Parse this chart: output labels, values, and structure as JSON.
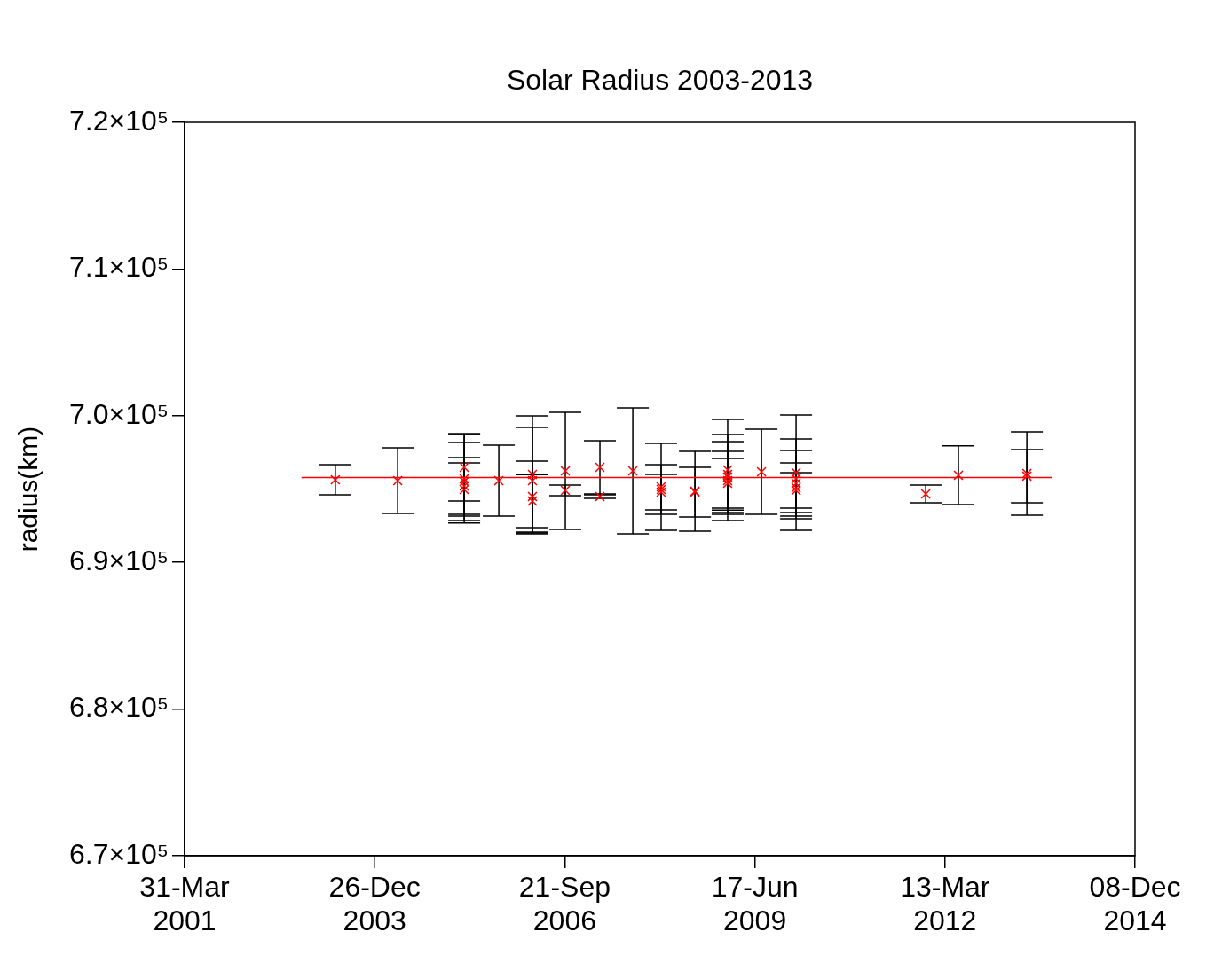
{
  "chart_data": {
    "type": "scatter",
    "title": "Solar Radius 2003-2013",
    "ylabel": "radius(km)",
    "xlim": [
      "2001-03-31",
      "2014-12-08"
    ],
    "xticks": [
      {
        "value": "2001-03-31",
        "label": "31-Mar 2001"
      },
      {
        "value": "2003-12-26",
        "label": "26-Dec 2003"
      },
      {
        "value": "2006-09-21",
        "label": "21-Sep 2006"
      },
      {
        "value": "2009-06-17",
        "label": "17-Jun 2009"
      },
      {
        "value": "2012-03-13",
        "label": "13-Mar 2012"
      },
      {
        "value": "2014-12-08",
        "label": "08-Dec 2014"
      }
    ],
    "ylim": [
      670000,
      720000
    ],
    "yticks": [
      {
        "value": 670000,
        "label": "6.7×10⁵"
      },
      {
        "value": 680000,
        "label": "6.8×10⁵"
      },
      {
        "value": 690000,
        "label": "6.9×10⁵"
      },
      {
        "value": 700000,
        "label": "7.0×10⁵"
      },
      {
        "value": 710000,
        "label": "7.1×10⁵"
      },
      {
        "value": 720000,
        "label": "7.2×10⁵"
      }
    ],
    "grid": false,
    "legend": false,
    "marker": "cross",
    "series": [
      {
        "type": "scatter",
        "color": "#ff0000",
        "x": [
          "2003-06-02",
          "2004-04-25",
          "2005-04-10",
          "2005-04-10",
          "2005-04-10",
          "2005-04-10",
          "2005-04-10",
          "2005-10-09",
          "2006-04-04",
          "2006-04-04",
          "2006-04-04",
          "2006-04-04",
          "2006-09-24",
          "2006-09-24",
          "2007-03-25",
          "2007-03-25",
          "2007-09-14",
          "2008-02-10",
          "2008-02-10",
          "2008-02-10",
          "2008-08-06",
          "2008-08-06",
          "2009-01-25",
          "2009-01-25",
          "2009-01-25",
          "2009-01-25",
          "2009-01-25",
          "2009-07-22",
          "2010-01-20",
          "2010-01-20",
          "2010-01-20",
          "2010-01-20",
          "2010-01-20",
          "2011-12-03",
          "2012-05-23",
          "2013-05-18",
          "2013-05-18"
        ],
        "values": [
          695630,
          695570,
          696480,
          695700,
          695510,
          695210,
          694970,
          695570,
          696000,
          695570,
          694490,
          694180,
          696240,
          694910,
          696480,
          694490,
          696240,
          695150,
          694970,
          694790,
          694850,
          694790,
          696300,
          696000,
          695820,
          695570,
          695390,
          696180,
          696120,
          695700,
          695390,
          695090,
          694910,
          694670,
          695940,
          696060,
          695880
        ],
        "errors": [
          1030,
          2240,
          2300,
          3020,
          2660,
          1930,
          1810,
          2420,
          3990,
          3630,
          2420,
          1810,
          3990,
          360,
          1810,
          120,
          4290,
          2960,
          1690,
          1210,
          2720,
          1690,
          3450,
          2720,
          2420,
          2000,
          1690,
          2900,
          3930,
          2720,
          2240,
          1690,
          1210,
          600,
          2000,
          2840,
          1810
        ]
      },
      {
        "type": "line",
        "color": "#ff0000",
        "marker": "none",
        "x": [
          "2002-12-06",
          "2013-09-26"
        ],
        "values": [
          695790,
          695790
        ]
      }
    ]
  }
}
